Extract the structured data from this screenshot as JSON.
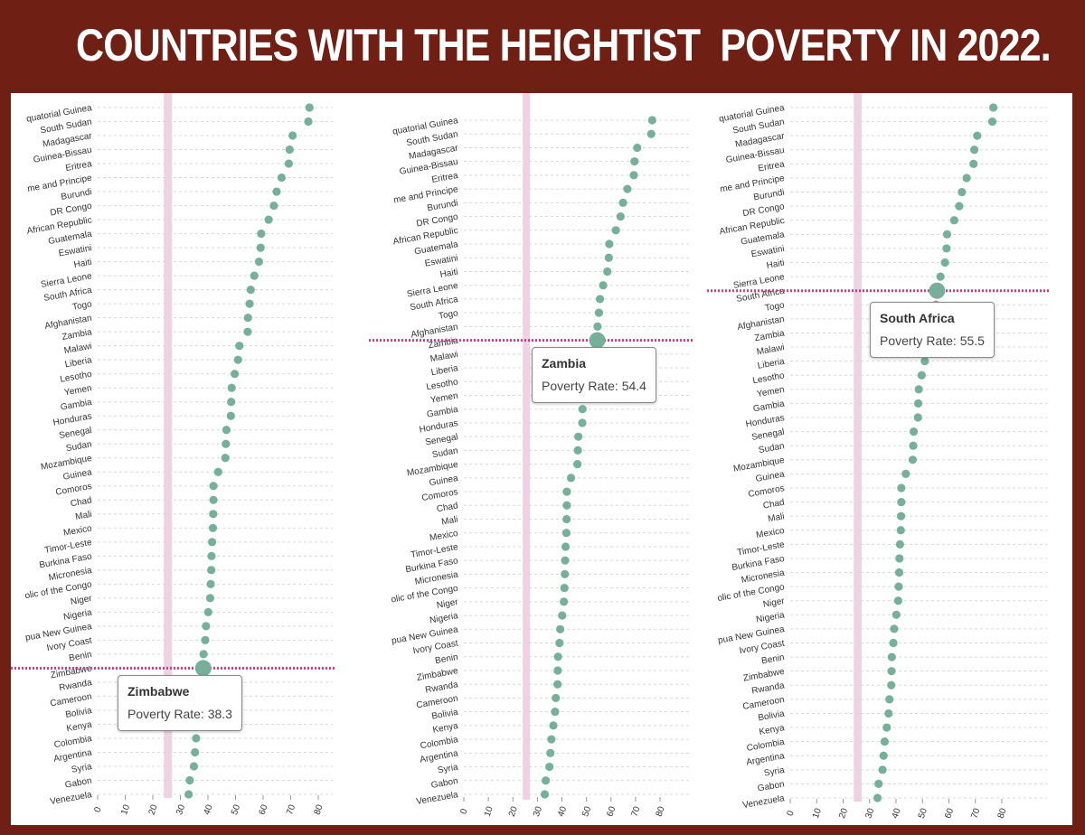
{
  "title": "COUNTRIES WITH THE HEIGHTIST  POVERTY IN 2022.",
  "colors": {
    "background": "#6f1f13",
    "dot": "#76b09a",
    "highlight_line": "#c2418a",
    "band": "#f0d3e3",
    "grid": "#d8d8d8",
    "axis_text": "#333333"
  },
  "chart_data": [
    {
      "type": "scatter",
      "title": "",
      "xlabel": "",
      "ylabel": "",
      "xlim": [
        0,
        80
      ],
      "xticks": [
        "0",
        "10",
        "20",
        "30",
        "40",
        "50",
        "60",
        "70",
        "80"
      ],
      "band": [
        24,
        27
      ],
      "grid": true,
      "categories": [
        "quatorial Guinea",
        "South Sudan",
        "Madagascar",
        "Guinea-Bissau",
        "Eritrea",
        "me and Principe",
        "Burundi",
        "DR Congo",
        "African Republic",
        "Guatemala",
        "Eswatini",
        "Haiti",
        "Sierra Leone",
        "South Africa",
        "Togo",
        "Afghanistan",
        "Zambia",
        "Malawi",
        "Liberia",
        "Lesotho",
        "Yemen",
        "Gambia",
        "Honduras",
        "Senegal",
        "Sudan",
        "Mozambique",
        "Guinea",
        "Comoros",
        "Chad",
        "Mali",
        "Mexico",
        "Timor-Leste",
        "Burkina Faso",
        "Micronesia",
        "olic of the Congo",
        "Niger",
        "Nigeria",
        "pua New Guinea",
        "Ivory Coast",
        "Benin",
        "Zimbabwe",
        "Rwanda",
        "Cameroon",
        "Bolivia",
        "Kenya",
        "Colombia",
        "Argentina",
        "Syria",
        "Gabon",
        "Venezuela"
      ],
      "values": [
        76.8,
        76.4,
        70.7,
        69.6,
        69.3,
        66.7,
        64.9,
        63.9,
        62.0,
        59.3,
        59.1,
        58.5,
        56.8,
        55.5,
        55.1,
        54.5,
        54.4,
        51.4,
        50.9,
        49.7,
        48.6,
        48.4,
        48.3,
        46.7,
        46.5,
        46.3,
        43.7,
        42.0,
        42.0,
        41.9,
        41.8,
        41.5,
        41.3,
        41.2,
        41.0,
        40.8,
        40.1,
        39.3,
        39.0,
        38.4,
        38.3,
        38.2,
        37.5,
        37.2,
        36.5,
        35.7,
        35.3,
        34.9,
        33.4,
        33.0
      ],
      "highlight": {
        "index": 40,
        "name": "Zimbabwe",
        "label": "Poverty Rate: 38.3"
      }
    },
    {
      "type": "scatter",
      "title": "",
      "xlabel": "",
      "ylabel": "",
      "xlim": [
        0,
        80
      ],
      "xticks": [
        "0",
        "10",
        "20",
        "30",
        "40",
        "50",
        "60",
        "70",
        "80"
      ],
      "band": [
        24,
        27
      ],
      "grid": true,
      "categories": [
        "quatorial Guinea",
        "South Sudan",
        "Madagascar",
        "Guinea-Bissau",
        "Eritrea",
        "me and Principe",
        "Burundi",
        "DR Congo",
        "African Republic",
        "Guatemala",
        "Eswatini",
        "Haiti",
        "Sierra Leone",
        "South Africa",
        "Togo",
        "Afghanistan",
        "Zambia",
        "Malawi",
        "Liberia",
        "Lesotho",
        "Yemen",
        "Gambia",
        "Honduras",
        "Senegal",
        "Sudan",
        "Mozambique",
        "Guinea",
        "Comoros",
        "Chad",
        "Mali",
        "Mexico",
        "Timor-Leste",
        "Burkina Faso",
        "Micronesia",
        "olic of the Congo",
        "Niger",
        "Nigeria",
        "pua New Guinea",
        "Ivory Coast",
        "Benin",
        "Zimbabwe",
        "Rwanda",
        "Cameroon",
        "Bolivia",
        "Kenya",
        "Colombia",
        "Argentina",
        "Syria",
        "Gabon",
        "Venezuela"
      ],
      "values": [
        76.8,
        76.4,
        70.7,
        69.6,
        69.3,
        66.7,
        64.9,
        63.9,
        62.0,
        59.3,
        59.1,
        58.5,
        56.8,
        55.5,
        55.1,
        54.5,
        54.4,
        51.4,
        50.9,
        49.7,
        48.6,
        48.4,
        48.3,
        46.7,
        46.5,
        46.3,
        43.7,
        42.0,
        42.0,
        41.9,
        41.8,
        41.5,
        41.3,
        41.2,
        41.0,
        40.8,
        40.1,
        39.3,
        39.0,
        38.4,
        38.3,
        38.2,
        37.5,
        37.2,
        36.5,
        35.7,
        35.3,
        34.9,
        33.4,
        33.0
      ],
      "highlight": {
        "index": 16,
        "name": "Zambia",
        "label": "Poverty Rate: 54.4"
      }
    },
    {
      "type": "scatter",
      "title": "",
      "xlabel": "",
      "ylabel": "",
      "xlim": [
        0,
        80
      ],
      "xticks": [
        "0",
        "10",
        "20",
        "30",
        "40",
        "50",
        "60",
        "70",
        "80"
      ],
      "band": [
        24,
        27
      ],
      "grid": true,
      "categories": [
        "quatorial Guinea",
        "South Sudan",
        "Madagascar",
        "Guinea-Bissau",
        "Eritrea",
        "me and Principe",
        "Burundi",
        "DR Congo",
        "African Republic",
        "Guatemala",
        "Eswatini",
        "Haiti",
        "Sierra Leone",
        "South Africa",
        "Togo",
        "Afghanistan",
        "Zambia",
        "Malawi",
        "Liberia",
        "Lesotho",
        "Yemen",
        "Gambia",
        "Honduras",
        "Senegal",
        "Sudan",
        "Mozambique",
        "Guinea",
        "Comoros",
        "Chad",
        "Mali",
        "Mexico",
        "Timor-Leste",
        "Burkina Faso",
        "Micronesia",
        "olic of the Congo",
        "Niger",
        "Nigeria",
        "pua New Guinea",
        "Ivory Coast",
        "Benin",
        "Zimbabwe",
        "Rwanda",
        "Cameroon",
        "Bolivia",
        "Kenya",
        "Colombia",
        "Argentina",
        "Syria",
        "Gabon",
        "Venezuela"
      ],
      "values": [
        76.8,
        76.4,
        70.7,
        69.6,
        69.3,
        66.7,
        64.9,
        63.9,
        62.0,
        59.3,
        59.1,
        58.5,
        56.8,
        55.5,
        55.1,
        54.5,
        54.4,
        51.4,
        50.9,
        49.7,
        48.6,
        48.4,
        48.3,
        46.7,
        46.5,
        46.3,
        43.7,
        42.0,
        42.0,
        41.9,
        41.8,
        41.5,
        41.3,
        41.2,
        41.0,
        40.8,
        40.1,
        39.3,
        39.0,
        38.4,
        38.3,
        38.2,
        37.5,
        37.2,
        36.5,
        35.7,
        35.3,
        34.9,
        33.4,
        33.0
      ],
      "highlight": {
        "index": 13,
        "name": "South Africa",
        "label": "Poverty Rate: 55.5"
      }
    }
  ]
}
